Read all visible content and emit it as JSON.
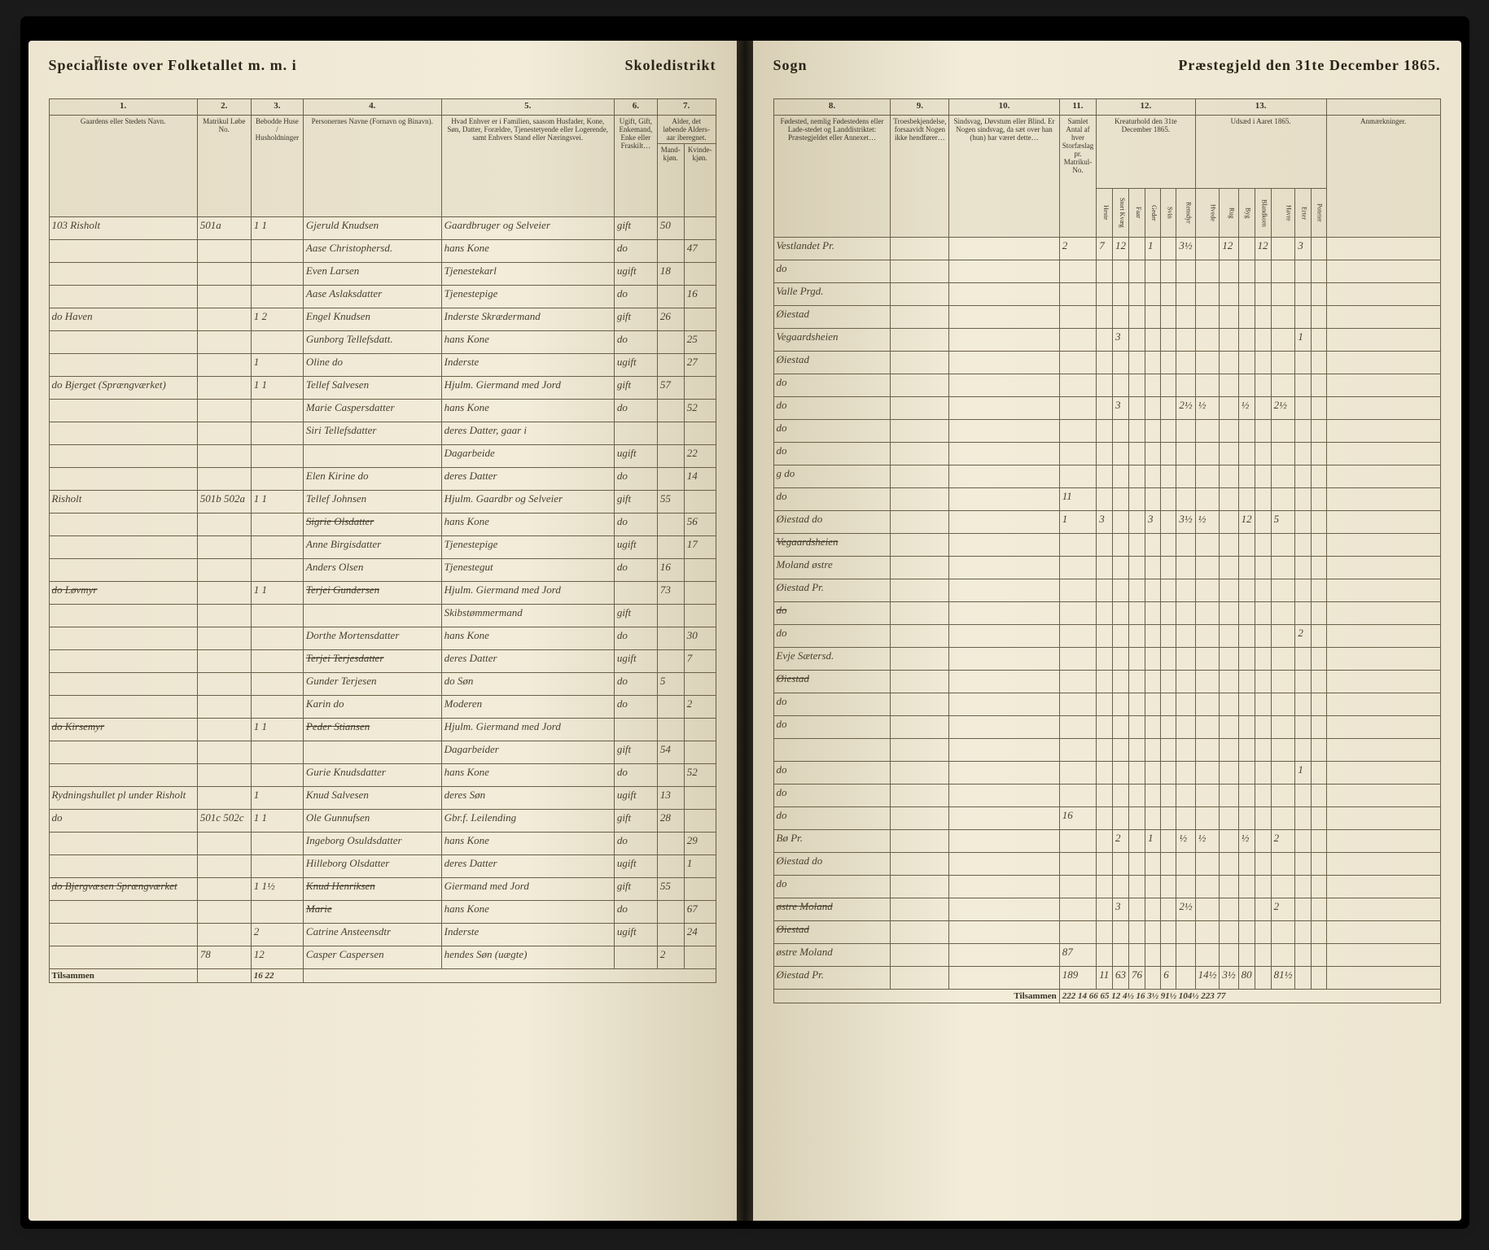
{
  "header_left": {
    "title_a": "Specialliste over Folketallet m. m. i",
    "title_b": "Skoledistrikt"
  },
  "header_right": {
    "title_a": "Sogn",
    "title_b": "Præstegjeld den 31te December 1865."
  },
  "page_number_left": "7",
  "colnums_left": [
    "1.",
    "2.",
    "3.",
    "4.",
    "5.",
    "6.",
    "7."
  ],
  "colnums_right": [
    "8.",
    "9.",
    "10.",
    "11.",
    "12.",
    "13."
  ],
  "colheads_left": {
    "c1": "Gaardens eller Stedets\nNavn.",
    "c2": "Matrikul Løbe No.",
    "c3": "Bebodde Huse / Husholdninger",
    "c4": "Personernes Navne (Fornavn og Binavn).",
    "c5": "Hvad Enhver er i Familien, saasom Husfader, Kone, Søn, Datter, Forældre, Tjenestetyende eller Logerende, samt Enhvers Stand eller Næringsvei.",
    "c6": "Ugift, Gift, Enkemand, Enke eller Fraskilt…",
    "c7a": "Mand-kjøn.",
    "c7b": "Kvinde-kjøn.",
    "c7h": "Alder, det løbende Alders-aar iberegnet."
  },
  "colheads_right": {
    "c8": "Fødested, nemlig Fødestedens eller Lade-stedet og Landdistriktet: Præstegjeldet eller Annexet…",
    "c9": "Troesbekjendelse, forsaavidt Nogen ikke hendfører…",
    "c10": "Sindsvag, Døvstum eller Blind. Er Nogen sindsvag, da sæt over han (hun) har været dette…",
    "c11": "Samlet Antal af hver Storfæslag pr. Matrikul-No.",
    "c12h": "Kreaturhold den 31te December 1865.",
    "c13h": "Udsæd i Aaret 1865.",
    "c14": "Anmærkninger."
  },
  "subheads_12": [
    "Heste",
    "Stort Kvæg",
    "Faar",
    "Geder",
    "Svin",
    "Rensdyr"
  ],
  "subheads_13": [
    "Hvede",
    "Rug",
    "Byg",
    "Blandkorn",
    "Havre",
    "Erter",
    "Poteter"
  ],
  "rows": [
    {
      "no": "103",
      "gaard": "Risholt",
      "mat": "501a",
      "hh": "1 1",
      "navn": "Gjeruld Knudsen",
      "fam": "Gaardbruger og Selveier",
      "stand": "gift",
      "mk": "50",
      "kk": "",
      "fsted": "Vestlandet Pr.",
      "k12": [
        "2",
        "7",
        "12",
        "",
        "1",
        "",
        "3½"
      ],
      "k13": [
        "",
        "12",
        "",
        "12",
        "",
        "3"
      ]
    },
    {
      "navn": "Aase Christophersd.",
      "fam": "hans Kone",
      "stand": "do",
      "kk": "47",
      "fsted": "do"
    },
    {
      "navn": "Even Larsen",
      "fam": "Tjenestekarl",
      "stand": "ugift",
      "mk": "18",
      "fsted": "Valle Prgd."
    },
    {
      "navn": "Aase Aslaksdatter",
      "fam": "Tjenestepige",
      "stand": "do",
      "kk": "16",
      "fsted": "Øiestad"
    },
    {
      "gaard": "do Haven",
      "mat": "",
      "hh": "1 2",
      "navn": "Engel Knudsen",
      "fam": "Inderste Skrædermand",
      "stand": "gift",
      "mk": "26",
      "fsted": "Vegaardsheien",
      "k12": [
        "",
        "",
        "3",
        "",
        "",
        "",
        ""
      ],
      "k13": [
        "",
        "",
        "",
        "",
        "",
        "1"
      ]
    },
    {
      "navn": "Gunborg Tellefsdatt.",
      "fam": "hans Kone",
      "stand": "do",
      "kk": "25",
      "fsted": "Øiestad"
    },
    {
      "hh": "1",
      "navn": "Oline do",
      "fam": "Inderste",
      "stand": "ugift",
      "kk": "27",
      "fsted": "do"
    },
    {
      "gaard": "do Bjerget (Sprængværket)",
      "hh": "1 1",
      "navn": "Tellef Salvesen",
      "fam": "Hjulm. Giermand med Jord",
      "stand": "gift",
      "mk": "57",
      "fsted": "do",
      "k12": [
        "",
        "",
        "3",
        "",
        "",
        "",
        "2½"
      ],
      "k13": [
        "½",
        "",
        "½",
        "",
        "2½"
      ]
    },
    {
      "navn": "Marie Caspersdatter",
      "fam": "hans Kone",
      "stand": "do",
      "kk": "52",
      "fsted": "do"
    },
    {
      "navn": "Siri Tellefsdatter",
      "fam": "deres Datter, gaar i",
      "stand": "",
      "fsted": "do"
    },
    {
      "navn": "",
      "fam": "Dagarbeide",
      "stand": "ugift",
      "kk": "22",
      "fsted": "g do"
    },
    {
      "navn": "Elen Kirine do",
      "fam": "deres Datter",
      "stand": "do",
      "kk": "14",
      "fsted": "do",
      "k12": [
        "11"
      ]
    },
    {
      "gaard": "Risholt",
      "mat": "501b 502a",
      "hh": "1 1",
      "navn": "Tellef Johnsen",
      "fam": "Hjulm. Gaardbr og Selveier",
      "stand": "gift",
      "mk": "55",
      "fsted": "Øiestad do",
      "k12": [
        "1",
        "3",
        "",
        "",
        "3",
        "",
        "3½"
      ],
      "k13": [
        "½",
        "",
        "12",
        "",
        "5"
      ]
    },
    {
      "navn": "Sigrie Olsdatter",
      "fam": "hans Kone",
      "stand": "do",
      "kk": "56",
      "fsted": "Vegaardsheien",
      "strike": true
    },
    {
      "navn": "Anne Birgisdatter",
      "fam": "Tjenestepige",
      "stand": "ugift",
      "kk": "17",
      "fsted": "Moland østre"
    },
    {
      "navn": "Anders Olsen",
      "fam": "Tjenestegut",
      "stand": "do",
      "mk": "16",
      "fsted": "Øiestad Pr."
    },
    {
      "gaard": "do Løvmyr",
      "hh": "1 1",
      "navn": "Terjei Gundersen",
      "fam": "Hjulm. Giermand med Jord",
      "stand": "",
      "mk": "73",
      "fsted": "do",
      "strike": true
    },
    {
      "navn": "",
      "fam": "Skibstømmermand",
      "stand": "gift",
      "fsted": "do",
      "k13": [
        "",
        "",
        "",
        "",
        "",
        "2"
      ]
    },
    {
      "navn": "Dorthe Mortensdatter",
      "fam": "hans Kone",
      "stand": "do",
      "kk": "30",
      "fsted": "Evje Sætersd."
    },
    {
      "navn": "Terjei Terjesdatter",
      "fam": "deres Datter",
      "stand": "ugift",
      "kk": "7",
      "fsted": "Øiestad",
      "strike": true
    },
    {
      "navn": "Gunder Terjesen",
      "fam": "do Søn",
      "stand": "do",
      "mk": "5",
      "fsted": "do"
    },
    {
      "navn": "Karin do",
      "fam": "Moderen",
      "stand": "do",
      "kk": "2",
      "fsted": "do"
    },
    {
      "gaard": "do Kirsemyr",
      "hh": "1 1",
      "navn": "Peder Stiansen",
      "fam": "Hjulm. Giermand med Jord",
      "stand": "",
      "fsted": "",
      "strike": true
    },
    {
      "navn": "",
      "fam": "Dagarbeider",
      "stand": "gift",
      "mk": "54",
      "fsted": "do",
      "k13": [
        "",
        "",
        "",
        "",
        "",
        "1"
      ]
    },
    {
      "navn": "Gurie Knudsdatter",
      "fam": "hans Kone",
      "stand": "do",
      "kk": "52",
      "fsted": "do"
    },
    {
      "gaard": "Rydningshullet pl under Risholt",
      "hh": "1",
      "navn": "Knud Salvesen",
      "fam": "deres Søn",
      "stand": "ugift",
      "mk": "13",
      "fsted": "do",
      "k12": [
        "16"
      ]
    },
    {
      "gaard": "do",
      "mat": "501c 502c",
      "hh": "1 1",
      "navn": "Ole Gunnufsen",
      "fam": "Gbr.f. Leilending",
      "stand": "gift",
      "mk": "28",
      "fsted": "Bø Pr.",
      "k12": [
        "",
        "",
        "2",
        "",
        "1",
        "",
        "½"
      ],
      "k13": [
        "½",
        "",
        "½",
        "",
        "2"
      ]
    },
    {
      "navn": "Ingeborg Osuldsdatter",
      "fam": "hans Kone",
      "stand": "do",
      "kk": "29",
      "fsted": "Øiestad do"
    },
    {
      "navn": "Hilleborg Olsdatter",
      "fam": "deres Datter",
      "stand": "ugift",
      "kk": "1",
      "fsted": "do"
    },
    {
      "gaard": "do Bjergvæsen Sprængværket",
      "hh": "1 1½",
      "navn": "Knud Henriksen",
      "fam": "Giermand med Jord",
      "stand": "gift",
      "mk": "55",
      "fsted": "østre Moland",
      "strike": true,
      "k12": [
        "",
        "",
        "3",
        "",
        "",
        "",
        "2½"
      ],
      "k13": [
        "",
        "",
        "",
        "",
        "2"
      ]
    },
    {
      "navn": "Marie",
      "fam": "hans Kone",
      "stand": "do",
      "kk": "67",
      "fsted": "Øiestad",
      "strike": true
    },
    {
      "hh": "2",
      "navn": "Catrine Ansteensdtr",
      "fam": "Inderste",
      "stand": "ugift",
      "kk": "24",
      "fsted": "østre Moland",
      "k12": [
        "87"
      ]
    },
    {
      "mat": "78",
      "hh": "12",
      "navn": "Casper Caspersen",
      "fam": "hendes Søn (uægte)",
      "stand": "",
      "mk": "2",
      "fsted": "Øiestad Pr.",
      "k12": [
        "189",
        "11",
        "63",
        "76",
        "",
        "6",
        "",
        "3½"
      ],
      "k13": [
        "14½",
        "3½",
        "80",
        "",
        "81½"
      ]
    }
  ],
  "footer_left": "Tilsammen",
  "footer_leftn": "16 22",
  "footer_right": "Tilsammen",
  "footer_totals1": [
    "222",
    "14",
    "66",
    "65",
    "",
    "12",
    "",
    "4½",
    "",
    "16",
    "3½",
    "91½",
    "",
    "104½"
  ],
  "footer_totals2": [
    "223",
    "",
    "77"
  ]
}
